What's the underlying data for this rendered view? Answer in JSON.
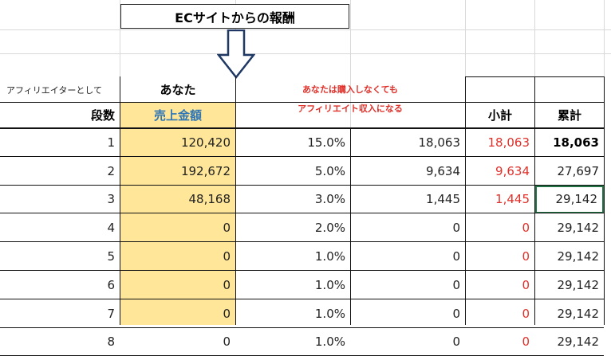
{
  "title": "ECサイトからの報酬",
  "header": {
    "affiliate_label": "アフィリエイターとして",
    "you_label": "あなた",
    "tier_label": "段数",
    "sales_label": "売上金額",
    "note_line1": "あなたは購入しなくても",
    "note_line2": "アフィリエイト収入になる",
    "subtotal_label": "小計",
    "cumulative_label": "累計"
  },
  "rows": [
    {
      "tier": "1",
      "sales": "120,420",
      "rate": "15.0%",
      "amount": "18,063",
      "subtotal": "18,063",
      "cumulative": "18,063"
    },
    {
      "tier": "2",
      "sales": "192,672",
      "rate": "5.0%",
      "amount": "9,634",
      "subtotal": "9,634",
      "cumulative": "27,697"
    },
    {
      "tier": "3",
      "sales": "48,168",
      "rate": "3.0%",
      "amount": "1,445",
      "subtotal": "1,445",
      "cumulative": "29,142"
    },
    {
      "tier": "4",
      "sales": "0",
      "rate": "2.0%",
      "amount": "0",
      "subtotal": "0",
      "cumulative": "29,142"
    },
    {
      "tier": "5",
      "sales": "0",
      "rate": "1.0%",
      "amount": "0",
      "subtotal": "0",
      "cumulative": "29,142"
    },
    {
      "tier": "6",
      "sales": "0",
      "rate": "1.0%",
      "amount": "0",
      "subtotal": "0",
      "cumulative": "29,142"
    },
    {
      "tier": "7",
      "sales": "0",
      "rate": "1.0%",
      "amount": "0",
      "subtotal": "0",
      "cumulative": "29,142"
    },
    {
      "tier": "8",
      "sales": "0",
      "rate": "1.0%",
      "amount": "0",
      "subtotal": "0",
      "cumulative": "29,142"
    }
  ],
  "colors": {
    "sales_fill": "#ffe699",
    "note_red": "#e0302a",
    "sales_header_blue": "#2e75b6",
    "selected_cell": "#217346"
  }
}
